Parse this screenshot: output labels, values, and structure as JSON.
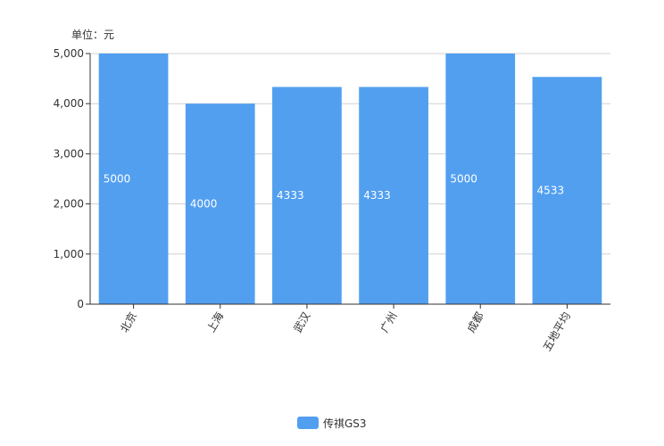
{
  "chart_data": {
    "type": "bar",
    "unit_label": "单位：元",
    "categories": [
      "北京",
      "上海",
      "武汉",
      "广州",
      "成都",
      "五地平均"
    ],
    "series": [
      {
        "name": "传祺GS3",
        "values": [
          5000,
          4000,
          4333,
          4333,
          5000,
          4533
        ],
        "color": "#529ff0"
      }
    ],
    "data_labels": [
      "5000",
      "4000",
      "4333",
      "4333",
      "5000",
      "4533"
    ],
    "ylim": [
      0,
      5000
    ],
    "yticks": [
      0,
      1000,
      2000,
      3000,
      4000,
      5000
    ],
    "ytick_labels": [
      "0",
      "1,000",
      "2,000",
      "3,000",
      "4,000",
      "5,000"
    ],
    "grid": true,
    "legend_position": "bottom"
  }
}
